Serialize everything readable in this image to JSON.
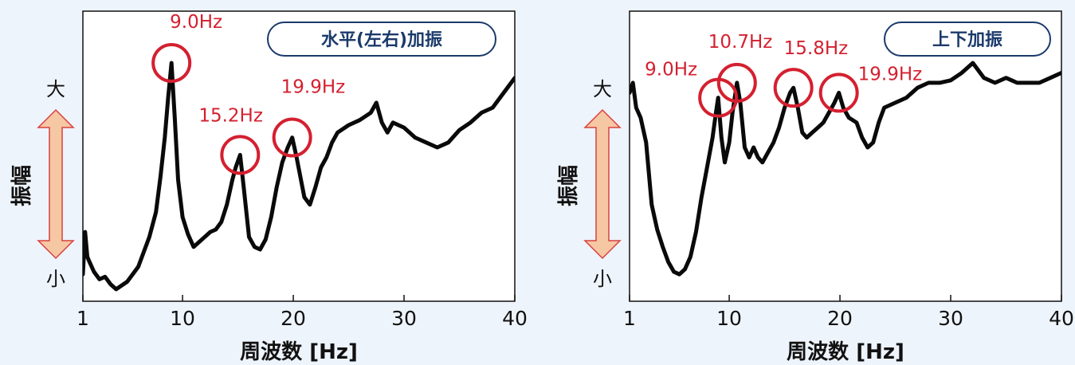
{
  "colors": {
    "background": "#eef4fb",
    "plot_fill": "#ffffff",
    "line": "#0a0a0a",
    "highlight": "#d42030",
    "title_border": "#1b3a6b",
    "arrow_fill": "#f6c7a3",
    "arrow_stroke": "#d94040"
  },
  "chart_data": [
    {
      "type": "line",
      "title": "水平(左右)加振",
      "xlabel": "周波数 [Hz]",
      "ylabel": "振幅",
      "y_scale_labels": {
        "high": "大",
        "low": "小"
      },
      "xlim": [
        1,
        40
      ],
      "ylim": [
        0,
        100
      ],
      "xticks": [
        1,
        10,
        20,
        30,
        40
      ],
      "y_values_relative": true,
      "grid": false,
      "legend": "none",
      "series": [
        {
          "x": [
            1.0,
            1.2,
            1.4,
            1.6,
            2.0,
            2.5,
            3.0,
            3.5,
            4.0,
            5.0,
            6.0,
            7.0,
            7.6,
            8.0,
            8.4,
            8.7,
            9.0,
            9.3,
            9.6,
            10.0,
            10.5,
            11.0,
            11.5,
            12.0,
            12.5,
            13.0,
            13.5,
            14.0,
            14.5,
            14.8,
            15.2,
            15.5,
            16.0,
            16.5,
            17.0,
            17.5,
            18.0,
            18.5,
            19.0,
            19.5,
            19.9,
            20.3,
            21.0,
            21.5,
            22.0,
            22.5,
            23.0,
            23.5,
            24.0,
            25.0,
            26.0,
            27.0,
            27.5,
            28.0,
            28.5,
            29.0,
            30.0,
            31.0,
            32.0,
            33.0,
            34.0,
            35.0,
            36.0,
            37.0,
            38.0,
            39.0,
            40.0
          ],
          "y": [
            7,
            24,
            14,
            12,
            8,
            5,
            6,
            3,
            1,
            4,
            10,
            22,
            32,
            46,
            62,
            78,
            92,
            70,
            45,
            30,
            23,
            18,
            20,
            22,
            24,
            25,
            28,
            35,
            45,
            50,
            55,
            43,
            22,
            18,
            17,
            21,
            30,
            42,
            52,
            58,
            62,
            54,
            38,
            35,
            42,
            50,
            54,
            60,
            64,
            67,
            69,
            72,
            76,
            68,
            64,
            68,
            66,
            62,
            60,
            58,
            60,
            65,
            68,
            72,
            74,
            80,
            86
          ]
        }
      ],
      "annotations": [
        {
          "label": "9.0Hz",
          "x": 9.0,
          "y": 92
        },
        {
          "label": "15.2Hz",
          "x": 15.2,
          "y": 55
        },
        {
          "label": "19.9Hz",
          "x": 19.9,
          "y": 62
        }
      ]
    },
    {
      "type": "line",
      "title": "上下加振",
      "xlabel": "周波数 [Hz]",
      "ylabel": "振幅",
      "y_scale_labels": {
        "high": "大",
        "low": "小"
      },
      "xlim": [
        1,
        40
      ],
      "ylim": [
        0,
        100
      ],
      "xticks": [
        1,
        10,
        20,
        30,
        40
      ],
      "y_values_relative": true,
      "grid": false,
      "legend": "none",
      "series": [
        {
          "x": [
            1.0,
            1.3,
            1.6,
            2.0,
            2.5,
            3.0,
            3.5,
            4.0,
            4.5,
            5.0,
            5.5,
            6.0,
            6.5,
            7.0,
            7.5,
            8.0,
            8.5,
            8.8,
            9.0,
            9.3,
            9.6,
            10.0,
            10.3,
            10.7,
            11.0,
            11.4,
            11.8,
            12.2,
            12.6,
            13.0,
            13.5,
            14.0,
            14.5,
            15.0,
            15.5,
            15.8,
            16.2,
            16.6,
            17.0,
            17.5,
            18.0,
            18.5,
            19.0,
            19.5,
            19.9,
            20.3,
            20.8,
            21.5,
            22.0,
            22.5,
            23.0,
            23.5,
            24.0,
            25.0,
            26.0,
            27.0,
            28.0,
            29.0,
            30.0,
            31.0,
            32.0,
            33.0,
            34.0,
            35.0,
            36.0,
            37.0,
            38.0,
            39.0,
            40.0
          ],
          "y": [
            80,
            84,
            74,
            70,
            60,
            35,
            25,
            18,
            12,
            8,
            7,
            9,
            14,
            24,
            38,
            50,
            62,
            72,
            78,
            62,
            52,
            60,
            72,
            84,
            76,
            58,
            54,
            58,
            54,
            52,
            56,
            60,
            66,
            74,
            80,
            82,
            74,
            64,
            62,
            64,
            66,
            68,
            72,
            76,
            80,
            74,
            70,
            68,
            62,
            58,
            60,
            68,
            74,
            76,
            78,
            82,
            84,
            84,
            85,
            88,
            92,
            86,
            84,
            86,
            84,
            84,
            84,
            86,
            88
          ]
        }
      ],
      "annotations": [
        {
          "label": "9.0Hz",
          "x": 9.0,
          "y": 78
        },
        {
          "label": "10.7Hz",
          "x": 10.7,
          "y": 84
        },
        {
          "label": "15.8Hz",
          "x": 15.8,
          "y": 82
        },
        {
          "label": "19.9Hz",
          "x": 19.9,
          "y": 80
        }
      ]
    }
  ]
}
